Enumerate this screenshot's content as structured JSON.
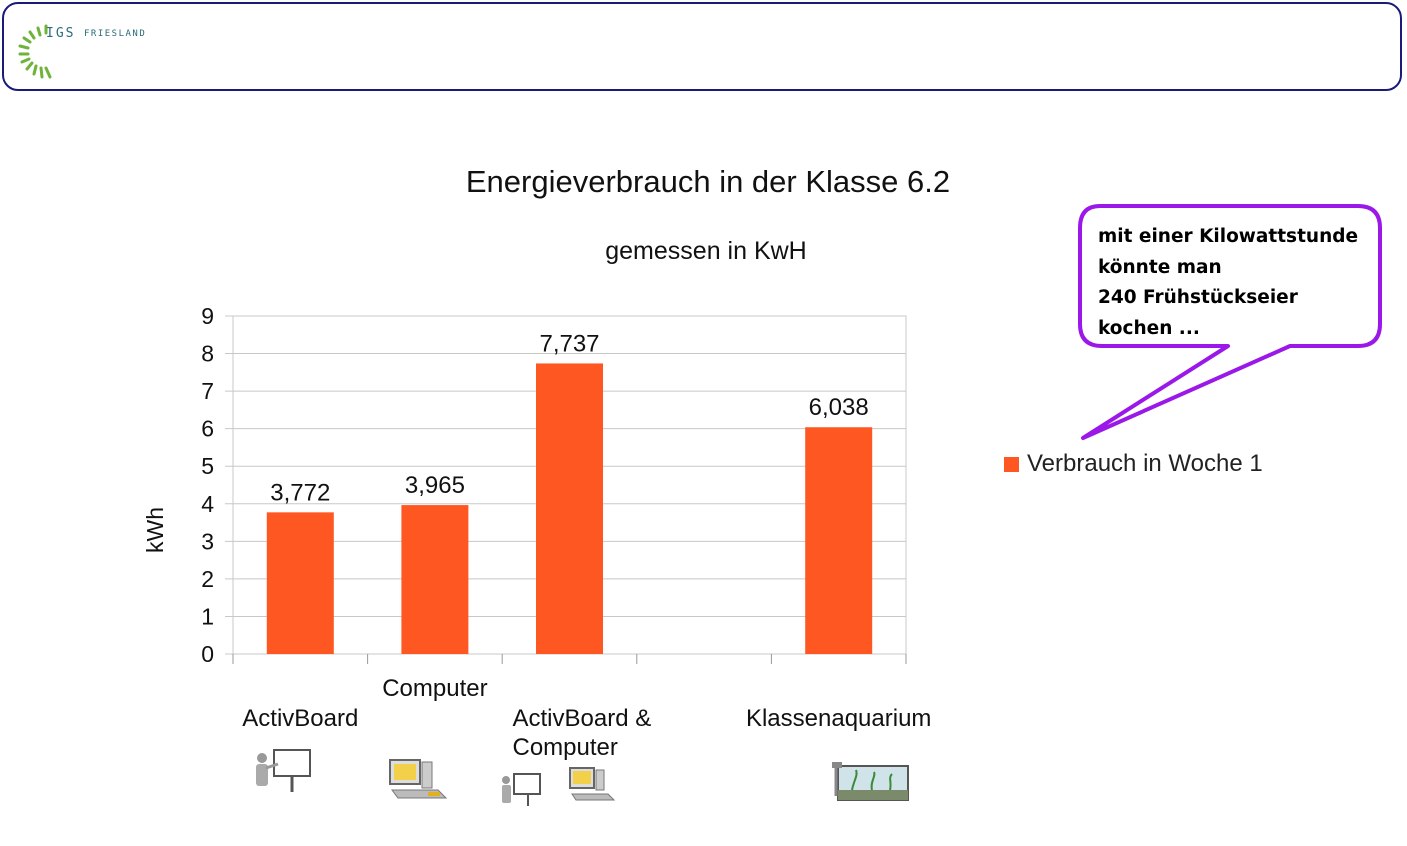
{
  "header": {
    "logo_main": "IGS",
    "logo_sub": "FRIESLAND"
  },
  "speech_bubble": {
    "lines": [
      "mit einer Kilowattstunde",
      "könnte man",
      "240 Frühstückseier",
      "kochen ..."
    ]
  },
  "chart_data": {
    "type": "bar",
    "title": "Energieverbrauch in der Klasse 6.2",
    "subtitle": "gemessen in KwH",
    "ylabel": "kWh",
    "ylim": [
      0,
      9
    ],
    "yticks": [
      "0",
      "1",
      "2",
      "3",
      "4",
      "5",
      "6",
      "7",
      "8",
      "9"
    ],
    "grid": true,
    "legend_position": "right",
    "categories": [
      "ActivBoard",
      "Computer",
      "ActivBoard & Computer",
      "",
      "Klassenaquarium"
    ],
    "category_label_lines": [
      [
        "ActivBoard"
      ],
      [
        "Computer"
      ],
      [
        "ActivBoard &",
        "Computer"
      ],
      [],
      [
        "Klassenaquarium"
      ]
    ],
    "series": [
      {
        "name": "Verbrauch in Woche 1",
        "values": [
          3.772,
          3.965,
          7.737,
          null,
          6.038
        ],
        "data_labels": [
          "3,772",
          "3,965",
          "7,737",
          "",
          "6,038"
        ],
        "color": "#ff5722"
      }
    ]
  },
  "category_icons": [
    "whiteboard-presenter-icon",
    "computer-icon",
    "whiteboard-and-computer-icon",
    "",
    "aquarium-icon"
  ],
  "colors": {
    "bar": "#ff5722",
    "bubble_border": "#9b19e8",
    "header_border": "#1a1a7a",
    "logo": "#6fb33a"
  }
}
